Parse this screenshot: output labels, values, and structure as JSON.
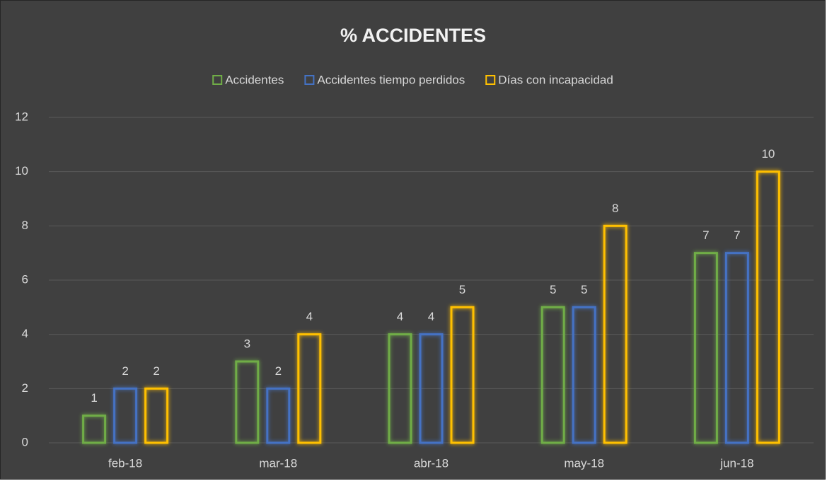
{
  "chart_data": {
    "type": "bar",
    "title": "% ACCIDENTES",
    "categories": [
      "feb-18",
      "mar-18",
      "abr-18",
      "may-18",
      "jun-18"
    ],
    "series": [
      {
        "name": "Accidentes",
        "color": "#70ad47",
        "values": [
          1,
          3,
          4,
          5,
          7
        ]
      },
      {
        "name": "Accidentes tiempo perdidos",
        "color": "#4472c4",
        "values": [
          2,
          2,
          4,
          5,
          7
        ]
      },
      {
        "name": "Días con incapacidad",
        "color": "#ffc000",
        "values": [
          2,
          4,
          5,
          8,
          10
        ]
      }
    ],
    "ylim": [
      0,
      12
    ],
    "yticks": [
      0,
      2,
      4,
      6,
      8,
      10,
      12
    ],
    "grid": true,
    "legend": "top"
  }
}
